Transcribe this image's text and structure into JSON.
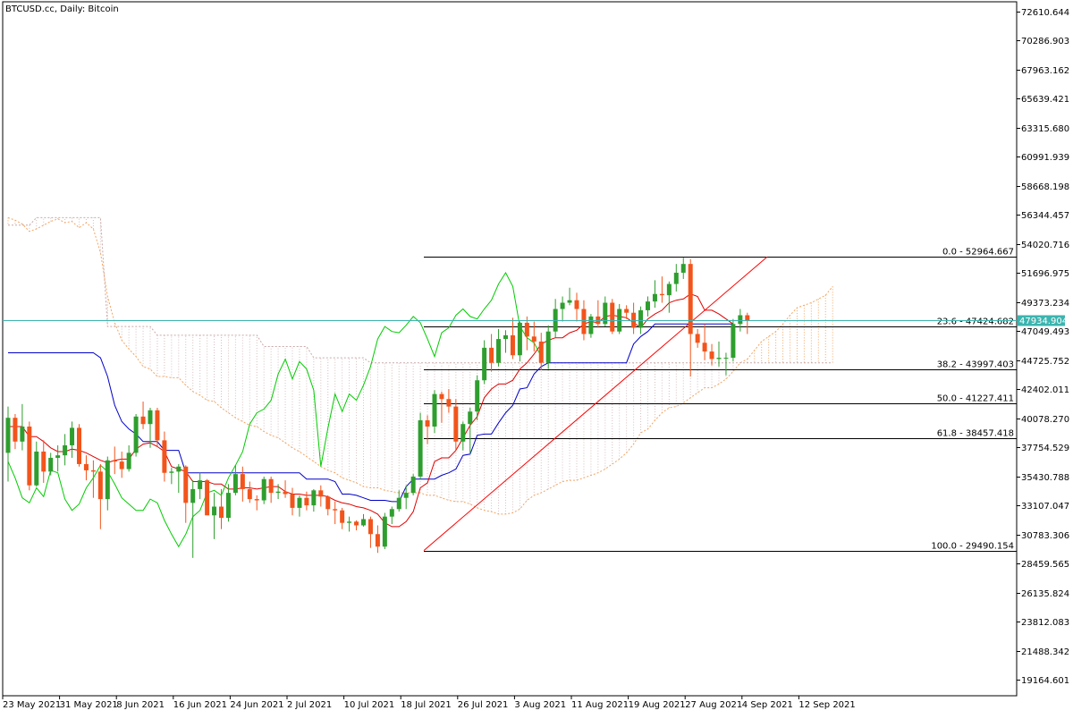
{
  "header": {
    "title": "BTCUSD.cc, Daily:  Bitcoin"
  },
  "chart_data": {
    "type": "candlestick",
    "symbol": "BTCUSD.cc",
    "timeframe": "Daily",
    "description": "Bitcoin",
    "y_ticks": [
      72610.644,
      70286.903,
      67963.162,
      65639.421,
      63315.68,
      60991.939,
      58668.198,
      56344.457,
      54020.716,
      51696.975,
      49373.234,
      47049.493,
      44725.752,
      42402.011,
      40078.27,
      37754.529,
      35430.788,
      33107.047,
      30783.306,
      28459.565,
      26135.824,
      23812.083,
      21488.342,
      19164.601
    ],
    "x_ticks": [
      "23 May 2021",
      "31 May 2021",
      "8 Jun 2021",
      "16 Jun 2021",
      "24 Jun 2021",
      "2 Jul 2021",
      "10 Jul 2021",
      "18 Jul 2021",
      "26 Jul 2021",
      "3 Aug 2021",
      "11 Aug 2021",
      "19 Aug 2021",
      "27 Aug 2021",
      "4 Sep 2021",
      "12 Sep 2021"
    ],
    "current_price": {
      "label": "47934.904",
      "value": 47934.904
    },
    "fibonacci": [
      {
        "label": "0.0 - 52964.667",
        "value": 52964.667
      },
      {
        "label": "23.6 - 47424.682",
        "value": 47424.682
      },
      {
        "label": "38.2 - 43997.403",
        "value": 43997.403
      },
      {
        "label": "50.0 - 41227.411",
        "value": 41227.411
      },
      {
        "label": "61.8 - 38457.418",
        "value": 38457.418
      },
      {
        "label": "100.0 - 29490.154",
        "value": 29490.154
      }
    ],
    "candles_ohlc": [
      [
        37300,
        41000,
        35000,
        40100
      ],
      [
        40100,
        40400,
        37600,
        38200
      ],
      [
        38200,
        41200,
        37500,
        39400
      ],
      [
        39400,
        39800,
        34300,
        34700
      ],
      [
        34700,
        38200,
        34600,
        37400
      ],
      [
        37400,
        38300,
        34900,
        35800
      ],
      [
        35800,
        37300,
        35500,
        36900
      ],
      [
        36900,
        37900,
        35800,
        37100
      ],
      [
        37100,
        38800,
        36300,
        37900
      ],
      [
        37900,
        39800,
        36900,
        39300
      ],
      [
        39300,
        39600,
        36200,
        36400
      ],
      [
        36400,
        37100,
        35100,
        35900
      ],
      [
        35900,
        36700,
        33700,
        35800
      ],
      [
        35800,
        36400,
        31200,
        33600
      ],
      [
        33600,
        37000,
        32700,
        36700
      ],
      [
        36700,
        37800,
        35600,
        36600
      ],
      [
        36600,
        37400,
        35300,
        36000
      ],
      [
        36000,
        37900,
        35800,
        37300
      ],
      [
        37300,
        40400,
        37000,
        40200
      ],
      [
        40200,
        41400,
        39200,
        39600
      ],
      [
        39600,
        40900,
        37700,
        40700
      ],
      [
        40700,
        40900,
        37800,
        38300
      ],
      [
        38300,
        39000,
        35000,
        35700
      ],
      [
        35700,
        36100,
        34800,
        35800
      ],
      [
        35800,
        36400,
        34100,
        36200
      ],
      [
        36200,
        36300,
        31700,
        33300
      ],
      [
        33300,
        35100,
        28900,
        34400
      ],
      [
        34400,
        35700,
        33600,
        35100
      ],
      [
        35100,
        35200,
        32500,
        32300
      ],
      [
        32300,
        34100,
        30400,
        33000
      ],
      [
        33000,
        34400,
        31200,
        32100
      ],
      [
        32100,
        34800,
        31800,
        34100
      ],
      [
        34100,
        36300,
        33900,
        35600
      ],
      [
        35600,
        36200,
        33400,
        34400
      ],
      [
        34400,
        35000,
        33300,
        33600
      ],
      [
        33600,
        33900,
        32700,
        33500
      ],
      [
        33500,
        35400,
        33200,
        35200
      ],
      [
        35200,
        35400,
        33300,
        34100
      ],
      [
        34100,
        34800,
        33600,
        34200
      ],
      [
        34200,
        35100,
        33700,
        34000
      ],
      [
        34000,
        34500,
        32300,
        32900
      ],
      [
        32900,
        33900,
        32200,
        33700
      ],
      [
        33700,
        34200,
        32700,
        33100
      ],
      [
        33100,
        34400,
        32600,
        34300
      ],
      [
        34300,
        34700,
        33000,
        33800
      ],
      [
        33800,
        33900,
        32300,
        32800
      ],
      [
        32800,
        33400,
        31600,
        32700
      ],
      [
        32700,
        32900,
        31200,
        31700
      ],
      [
        31700,
        32200,
        31000,
        31800
      ],
      [
        31800,
        31900,
        31100,
        31500
      ],
      [
        31500,
        32400,
        31400,
        32000
      ],
      [
        32000,
        32200,
        29700,
        30800
      ],
      [
        30800,
        31500,
        29300,
        29800
      ],
      [
        29800,
        32500,
        29600,
        32200
      ],
      [
        32200,
        33000,
        31600,
        32800
      ],
      [
        32800,
        34300,
        32600,
        33700
      ],
      [
        33700,
        34700,
        32800,
        34100
      ],
      [
        34100,
        35600,
        33900,
        35400
      ],
      [
        35400,
        40500,
        35200,
        39900
      ],
      [
        39900,
        40300,
        38000,
        39400
      ],
      [
        39400,
        42300,
        38900,
        42000
      ],
      [
        42000,
        42200,
        39700,
        41600
      ],
      [
        41600,
        42400,
        40500,
        41000
      ],
      [
        41000,
        41600,
        37500,
        38200
      ],
      [
        38200,
        39800,
        37500,
        39600
      ],
      [
        39600,
        40900,
        37200,
        40600
      ],
      [
        40600,
        43500,
        39900,
        43100
      ],
      [
        43100,
        46300,
        42800,
        45700
      ],
      [
        45700,
        46800,
        43800,
        44500
      ],
      [
        44500,
        47200,
        44200,
        46400
      ],
      [
        46400,
        47100,
        45300,
        46700
      ],
      [
        46700,
        48100,
        44800,
        45100
      ],
      [
        45100,
        47800,
        44600,
        47700
      ],
      [
        47700,
        48200,
        45500,
        46600
      ],
      [
        46600,
        47800,
        45400,
        46200
      ],
      [
        46200,
        46900,
        43900,
        44500
      ],
      [
        44500,
        47500,
        44000,
        47000
      ],
      [
        47000,
        49600,
        46500,
        48800
      ],
      [
        48800,
        49800,
        47800,
        49300
      ],
      [
        49300,
        50500,
        49100,
        49500
      ],
      [
        49500,
        50100,
        47800,
        48800
      ],
      [
        48800,
        49500,
        46300,
        46800
      ],
      [
        46800,
        48400,
        46500,
        48200
      ],
      [
        48200,
        49500,
        47300,
        47600
      ],
      [
        47600,
        49800,
        47400,
        49300
      ],
      [
        49300,
        49600,
        46800,
        47000
      ],
      [
        47000,
        49200,
        46800,
        48800
      ],
      [
        48800,
        49100,
        48000,
        48500
      ],
      [
        48500,
        49300,
        46800,
        47300
      ],
      [
        47300,
        49000,
        46800,
        48700
      ],
      [
        48700,
        49800,
        48200,
        49400
      ],
      [
        49400,
        51100,
        48900,
        50000
      ],
      [
        50000,
        51400,
        49300,
        49900
      ],
      [
        49900,
        51000,
        48500,
        50800
      ],
      [
        50800,
        52400,
        50200,
        51700
      ],
      [
        51700,
        52900,
        51200,
        52400
      ],
      [
        52400,
        52800,
        43400,
        46800
      ],
      [
        46800,
        47200,
        45700,
        46100
      ],
      [
        46100,
        47600,
        44700,
        45400
      ],
      [
        45400,
        46000,
        44300,
        44800
      ],
      [
        44800,
        46200,
        44200,
        44900
      ],
      [
        44900,
        45300,
        43500,
        44900
      ],
      [
        44900,
        48000,
        44600,
        47600
      ],
      [
        47600,
        48800,
        47000,
        48300
      ],
      [
        48300,
        48500,
        46800,
        47900
      ]
    ],
    "tenkan": [
      39400,
      39400,
      39400,
      38600,
      38600,
      38200,
      37700,
      37400,
      37400,
      37600,
      37500,
      37300,
      37000,
      36700,
      36500,
      36700,
      36800,
      36800,
      37600,
      38000,
      38100,
      37800,
      37400,
      36200,
      36000,
      35800,
      35000,
      35000,
      35000,
      34800,
      34800,
      34400,
      34400,
      34500,
      34500,
      34400,
      34500,
      34600,
      34600,
      34200,
      34000,
      34000,
      33900,
      33900,
      33900,
      33800,
      33500,
      33300,
      33200,
      33000,
      32900,
      32700,
      32400,
      31700,
      31400,
      31400,
      31800,
      32600,
      34500,
      34900,
      36600,
      36900,
      36900,
      37500,
      38500,
      39500,
      40200,
      41700,
      42400,
      42800,
      42800,
      43100,
      44000,
      44500,
      45200,
      46000,
      46300,
      46500,
      46500,
      46900,
      47100,
      47600,
      47800,
      47700,
      48200,
      48300,
      48200,
      48100,
      47700,
      47300,
      48000,
      48400,
      48700,
      49300,
      49500,
      49600,
      50000,
      49800,
      48700,
      48700,
      48400,
      48000,
      47600
    ],
    "kijun": [
      45300,
      45300,
      45300,
      45300,
      45300,
      45300,
      45300,
      45300,
      45300,
      45300,
      45300,
      45300,
      45300,
      44900,
      43400,
      41100,
      39800,
      39200,
      38800,
      38200,
      38200,
      38200,
      37500,
      37500,
      37500,
      35700,
      35700,
      35700,
      35700,
      35700,
      35700,
      35700,
      35700,
      35700,
      35700,
      35700,
      35700,
      35700,
      35700,
      35700,
      35700,
      35700,
      35200,
      35200,
      35200,
      35200,
      35000,
      34000,
      34000,
      33900,
      33700,
      33500,
      33500,
      33500,
      33400,
      33400,
      34600,
      35200,
      35200,
      35200,
      35200,
      35500,
      35700,
      36000,
      37100,
      37200,
      38700,
      38800,
      38800,
      39700,
      40500,
      41100,
      42400,
      42500,
      43600,
      44200,
      44500,
      44500,
      44500,
      44500,
      44500,
      44500,
      44500,
      44500,
      44500,
      44500,
      44500,
      44500,
      46000,
      46600,
      47000,
      47600,
      47600,
      47600,
      47600,
      47600,
      47600,
      47600,
      47600,
      47600,
      47600,
      47600,
      47600
    ],
    "chikou": [
      36600,
      35300,
      33700,
      33300,
      34500,
      33800,
      35900,
      35700,
      33600,
      32700,
      33200,
      34500,
      35300,
      36300,
      35800,
      34800,
      33700,
      33200,
      32700,
      32700,
      33600,
      33300,
      31900,
      30800,
      29800,
      30800,
      32200,
      32700,
      34100,
      34300,
      33900,
      35300,
      36300,
      37400,
      39600,
      40500,
      40800,
      41500,
      43600,
      44800,
      43200,
      44600,
      44000,
      42300,
      36200,
      39300,
      42000,
      40600,
      42000,
      41500,
      42700,
      44200,
      46400,
      47400,
      47000,
      46900,
      47500,
      48200,
      47700,
      46400,
      45000,
      46900,
      47300,
      48300,
      48800,
      48200,
      48000,
      48800,
      49500,
      50800,
      51700,
      50600,
      47400,
      46500,
      46100,
      45000
    ],
    "senkou_a_x0": 0,
    "senkou_a": [
      56100,
      55900,
      55600,
      55000,
      55200,
      55500,
      55800,
      56000,
      55700,
      55800,
      55300,
      55700,
      55200,
      53300,
      49800,
      47700,
      46300,
      45600,
      45000,
      44200,
      44000,
      43400,
      43400,
      43300,
      43300,
      42700,
      42200,
      41900,
      41500,
      41400,
      40900,
      40500,
      40100,
      39800,
      39500,
      39400,
      39000,
      38700,
      38500,
      38100,
      37700,
      37400,
      37000,
      36600,
      36200,
      35900,
      35700,
      35300,
      35100,
      34900,
      34600,
      34500,
      34500,
      34300,
      34200,
      34100,
      34100,
      34100,
      34100,
      33900,
      33900,
      33700,
      33500,
      33400,
      33400,
      33200,
      32900,
      32700,
      32600,
      32400,
      32400,
      32500,
      32800,
      33500,
      33900,
      34100,
      34400,
      34700,
      35000,
      35100,
      35100,
      35300,
      35500,
      35700,
      36000,
      36400,
      36800,
      37300,
      38000,
      38900,
      39200,
      39900,
      40500,
      40900,
      41000,
      41300,
      41700,
      42100,
      42500,
      42500,
      42800,
      43200,
      43800,
      44500,
      44800,
      45500,
      46200,
      46600,
      47000,
      47600,
      48300,
      48900,
      49100,
      49300,
      49600,
      49900,
      50600
    ],
    "senkou_b_x0": 0,
    "senkou_b": [
      55500,
      55500,
      55500,
      55500,
      56100,
      56100,
      56100,
      56100,
      56100,
      56100,
      56100,
      56100,
      56100,
      56100,
      47400,
      47400,
      47400,
      47400,
      47400,
      47400,
      47400,
      46700,
      46700,
      46700,
      46700,
      46700,
      46700,
      46700,
      46700,
      46700,
      46700,
      46700,
      46700,
      46700,
      46700,
      46700,
      45800,
      45800,
      45800,
      45800,
      45800,
      45800,
      45800,
      44900,
      44900,
      44900,
      44900,
      44900,
      44900,
      44900,
      44900,
      44500,
      44500,
      44500,
      44500,
      44500,
      44500,
      44500,
      44500,
      44500,
      44500,
      44500,
      44500,
      44500,
      44500,
      44500,
      44500,
      44500,
      44500,
      44500,
      44500,
      44500,
      44500,
      44500,
      44500,
      44500,
      44500,
      44500,
      44500,
      44500,
      44500,
      44500,
      44500,
      44500,
      44500,
      44500,
      44500,
      44500,
      44500,
      44500,
      44500,
      44500,
      44500,
      44500,
      44500,
      44500,
      44500,
      44500,
      44500,
      44500,
      44500,
      44500,
      44500,
      44500,
      44500,
      44500,
      44500,
      44500,
      44500,
      44500,
      44500,
      44500,
      44500,
      44500,
      44500,
      44500,
      44500
    ]
  }
}
